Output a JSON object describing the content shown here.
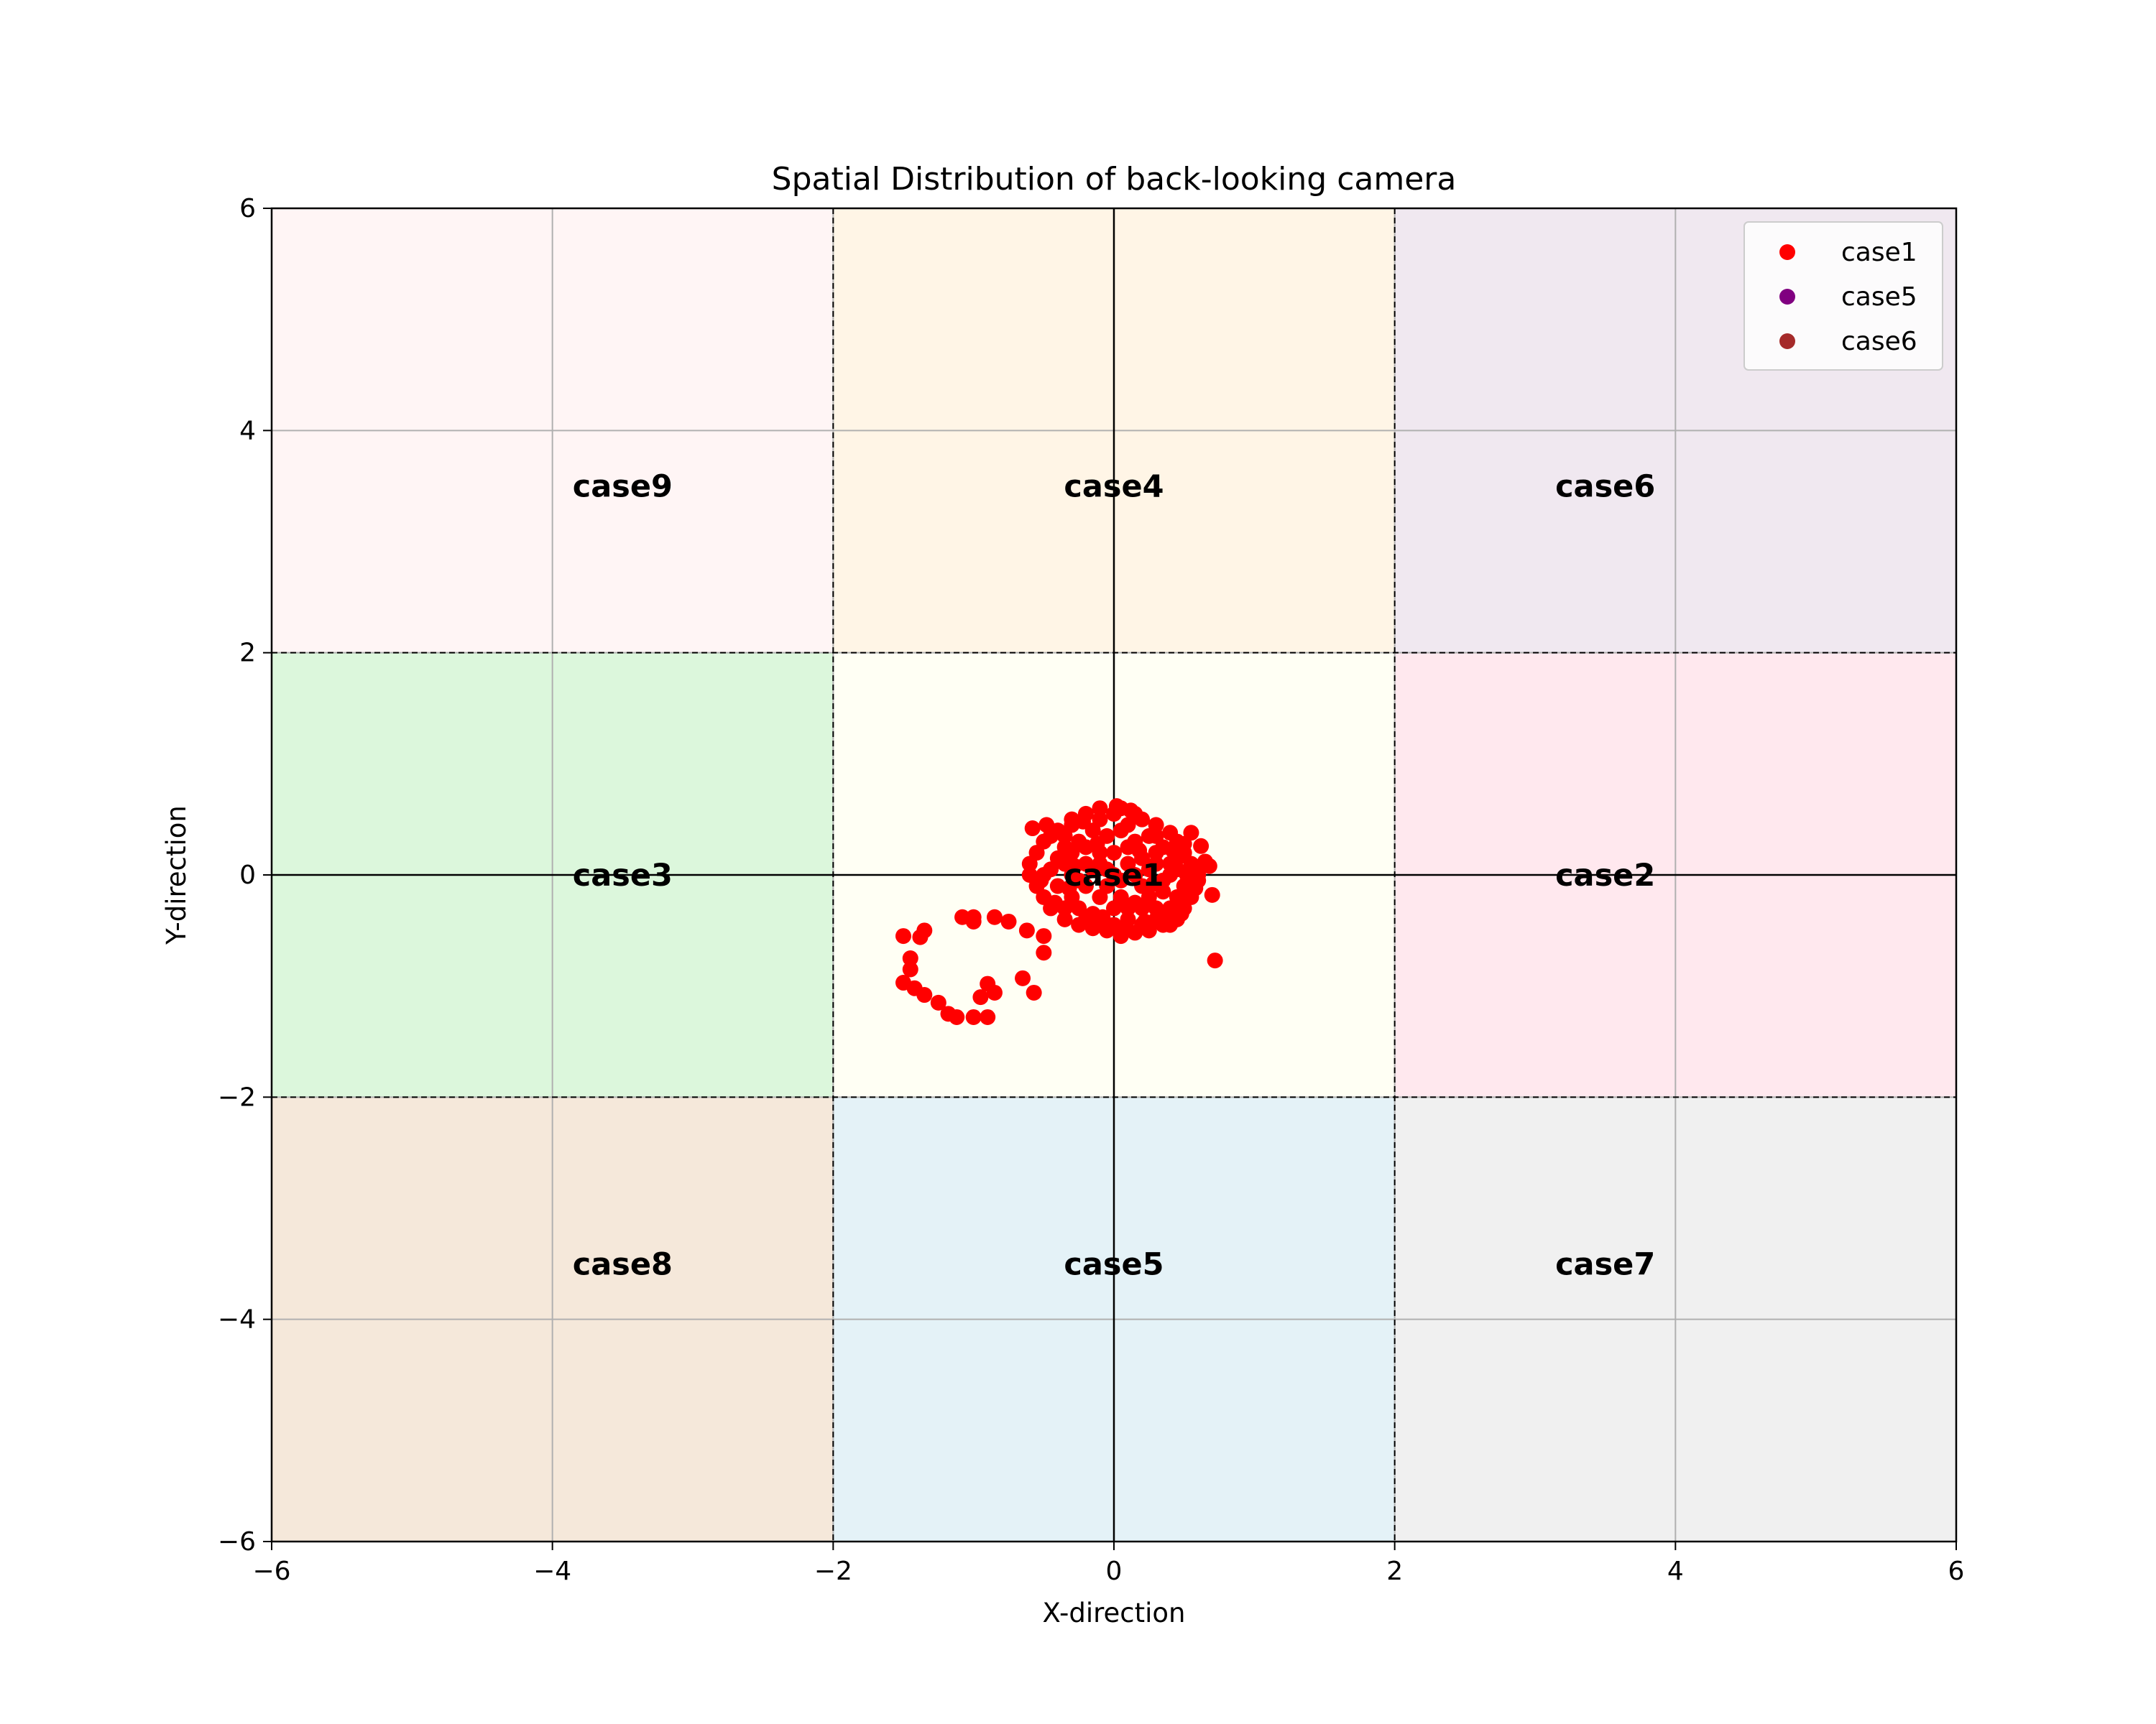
{
  "chart_data": {
    "type": "scatter",
    "title": "Spatial Distribution of back-looking camera",
    "xlabel": "X-direction",
    "ylabel": "Y-direction",
    "xlim": [
      -6,
      6
    ],
    "ylim": [
      -6,
      6
    ],
    "xticks": [
      -6,
      -4,
      -2,
      0,
      2,
      4,
      6
    ],
    "yticks": [
      -6,
      -4,
      -2,
      0,
      2,
      4,
      6
    ],
    "xtick_labels": [
      "−6",
      "−4",
      "−2",
      "0",
      "2",
      "4",
      "6"
    ],
    "ytick_labels": [
      "−6",
      "−4",
      "−2",
      "0",
      "2",
      "4",
      "6"
    ],
    "grid": true,
    "legend_position": "top-right",
    "regions": [
      {
        "label": "case9",
        "x": [
          -6,
          -2
        ],
        "y": [
          2,
          6
        ],
        "color": "#fff5f5"
      },
      {
        "label": "case4",
        "x": [
          -2,
          2
        ],
        "y": [
          2,
          6
        ],
        "color": "#fff5e6"
      },
      {
        "label": "case6",
        "x": [
          2,
          6
        ],
        "y": [
          2,
          6
        ],
        "color": "#f0e8f0"
      },
      {
        "label": "case3",
        "x": [
          -6,
          -2
        ],
        "y": [
          -2,
          2
        ],
        "color": "#dcf7dc"
      },
      {
        "label": "case1",
        "x": [
          -2,
          2
        ],
        "y": [
          -2,
          2
        ],
        "color": "#fffff4"
      },
      {
        "label": "case2",
        "x": [
          2,
          6
        ],
        "y": [
          -2,
          2
        ],
        "color": "#ffe8ee"
      },
      {
        "label": "case8",
        "x": [
          -6,
          -2
        ],
        "y": [
          -6,
          -2
        ],
        "color": "#f5e8da"
      },
      {
        "label": "case5",
        "x": [
          -2,
          2
        ],
        "y": [
          -6,
          -2
        ],
        "color": "#e4f2f7"
      },
      {
        "label": "case7",
        "x": [
          2,
          6
        ],
        "y": [
          -6,
          -2
        ],
        "color": "#f0f0f0"
      }
    ],
    "region_label_positions": {
      "case9": [
        -3.5,
        3.5
      ],
      "case4": [
        0,
        3.5
      ],
      "case6": [
        3.5,
        3.5
      ],
      "case3": [
        -3.5,
        0
      ],
      "case1": [
        0,
        0
      ],
      "case2": [
        3.5,
        0
      ],
      "case8": [
        -3.5,
        -3.5
      ],
      "case5": [
        0,
        -3.5
      ],
      "case7": [
        3.5,
        -3.5
      ]
    },
    "series": [
      {
        "name": "case1",
        "color": "#ff0000",
        "points": [
          [
            -1.5,
            -0.55
          ],
          [
            -1.45,
            -0.75
          ],
          [
            -1.45,
            -0.85
          ],
          [
            -1.5,
            -0.97
          ],
          [
            -1.42,
            -1.02
          ],
          [
            -1.35,
            -1.08
          ],
          [
            -1.25,
            -1.15
          ],
          [
            -1.18,
            -1.25
          ],
          [
            -1.12,
            -1.28
          ],
          [
            -1.0,
            -1.28
          ],
          [
            -0.9,
            -1.28
          ],
          [
            -0.95,
            -1.1
          ],
          [
            -0.9,
            -0.98
          ],
          [
            -0.85,
            -1.06
          ],
          [
            -0.65,
            -0.93
          ],
          [
            -0.57,
            -1.06
          ],
          [
            -0.5,
            -0.55
          ],
          [
            -0.5,
            -0.7
          ],
          [
            -0.62,
            -0.5
          ],
          [
            -0.75,
            -0.42
          ],
          [
            -0.85,
            -0.38
          ],
          [
            -1.0,
            -0.38
          ],
          [
            -1.0,
            -0.42
          ],
          [
            -1.08,
            -0.38
          ],
          [
            -1.35,
            -0.5
          ],
          [
            -1.38,
            -0.56
          ],
          [
            0.72,
            -0.77
          ],
          [
            0.7,
            -0.18
          ],
          [
            0.68,
            0.08
          ],
          [
            0.62,
            0.26
          ],
          [
            0.55,
            0.38
          ],
          [
            -0.3,
            0.0
          ],
          [
            -0.2,
            0.1
          ],
          [
            -0.1,
            0.2
          ],
          [
            0.0,
            0.0
          ],
          [
            0.1,
            0.1
          ],
          [
            0.2,
            -0.1
          ],
          [
            0.3,
            0.1
          ],
          [
            0.4,
            0.0
          ],
          [
            0.5,
            -0.1
          ],
          [
            0.6,
            0.0
          ],
          [
            0.0,
            -0.3
          ],
          [
            0.1,
            -0.4
          ],
          [
            0.2,
            -0.3
          ],
          [
            0.3,
            -0.4
          ],
          [
            0.4,
            -0.3
          ],
          [
            -0.1,
            -0.2
          ],
          [
            -0.2,
            -0.1
          ],
          [
            -0.3,
            -0.2
          ],
          [
            -0.4,
            -0.1
          ],
          [
            -0.5,
            0.0
          ],
          [
            -0.6,
            0.0
          ],
          [
            -0.55,
            0.2
          ],
          [
            -0.5,
            0.3
          ],
          [
            -0.4,
            0.4
          ],
          [
            -0.3,
            0.5
          ],
          [
            -0.2,
            0.55
          ],
          [
            -0.1,
            0.6
          ],
          [
            0.0,
            0.55
          ],
          [
            0.05,
            0.6
          ],
          [
            0.15,
            0.55
          ],
          [
            0.2,
            0.5
          ],
          [
            0.3,
            0.45
          ],
          [
            0.4,
            0.38
          ],
          [
            0.45,
            0.3
          ],
          [
            0.5,
            0.2
          ],
          [
            0.55,
            0.1
          ],
          [
            0.6,
            -0.05
          ],
          [
            0.55,
            -0.2
          ],
          [
            0.5,
            -0.3
          ],
          [
            0.45,
            -0.4
          ],
          [
            0.35,
            -0.45
          ],
          [
            0.25,
            -0.5
          ],
          [
            0.15,
            -0.52
          ],
          [
            0.05,
            -0.55
          ],
          [
            -0.05,
            -0.5
          ],
          [
            -0.15,
            -0.48
          ],
          [
            -0.25,
            -0.45
          ],
          [
            -0.35,
            -0.4
          ],
          [
            -0.45,
            -0.3
          ],
          [
            -0.5,
            -0.2
          ],
          [
            -0.55,
            -0.1
          ],
          [
            -0.6,
            0.1
          ],
          [
            -0.58,
            0.42
          ],
          [
            -0.48,
            0.45
          ],
          [
            -0.35,
            0.35
          ],
          [
            -0.25,
            0.3
          ],
          [
            -0.15,
            0.4
          ],
          [
            -0.05,
            0.35
          ],
          [
            0.05,
            0.4
          ],
          [
            0.15,
            0.3
          ],
          [
            0.25,
            0.35
          ],
          [
            0.35,
            0.25
          ],
          [
            0.45,
            0.15
          ],
          [
            -0.3,
            0.2
          ],
          [
            -0.2,
            0.25
          ],
          [
            -0.1,
            0.1
          ],
          [
            0.0,
            0.2
          ],
          [
            0.1,
            0.25
          ],
          [
            0.2,
            0.15
          ],
          [
            0.3,
            0.2
          ],
          [
            0.4,
            0.1
          ],
          [
            -0.4,
            0.15
          ],
          [
            -0.35,
            -0.3
          ],
          [
            -0.25,
            -0.3
          ],
          [
            -0.15,
            -0.35
          ],
          [
            -0.05,
            -0.1
          ],
          [
            0.05,
            -0.2
          ],
          [
            0.15,
            -0.25
          ],
          [
            0.25,
            -0.2
          ],
          [
            0.35,
            -0.15
          ],
          [
            0.45,
            -0.2
          ],
          [
            -0.45,
            0.05
          ],
          [
            -0.35,
            0.1
          ],
          [
            -0.25,
            -0.05
          ],
          [
            -0.15,
            0.05
          ],
          [
            -0.05,
            0.05
          ],
          [
            0.05,
            -0.05
          ],
          [
            0.15,
            0.0
          ],
          [
            0.25,
            0.05
          ],
          [
            0.35,
            -0.05
          ],
          [
            0.45,
            0.05
          ],
          [
            -0.2,
            -0.4
          ],
          [
            -0.1,
            -0.45
          ],
          [
            0.0,
            -0.45
          ],
          [
            0.1,
            -0.3
          ],
          [
            0.2,
            -0.45
          ],
          [
            0.3,
            -0.3
          ],
          [
            0.4,
            -0.45
          ],
          [
            -0.3,
            0.45
          ],
          [
            -0.1,
            0.5
          ],
          [
            0.1,
            0.45
          ],
          [
            0.3,
            0.35
          ],
          [
            0.5,
            0.28
          ],
          [
            -0.45,
            0.35
          ],
          [
            -0.35,
            0.25
          ],
          [
            -0.28,
            0.08
          ],
          [
            0.62,
            0.08
          ],
          [
            0.65,
            0.12
          ],
          [
            0.58,
            -0.12
          ],
          [
            -0.42,
            -0.25
          ],
          [
            0.02,
            0.62
          ],
          [
            0.12,
            0.58
          ],
          [
            -0.22,
            0.48
          ],
          [
            0.35,
            -0.35
          ],
          [
            0.22,
            -0.42
          ],
          [
            0.08,
            -0.5
          ],
          [
            -0.08,
            -0.38
          ],
          [
            -0.32,
            -0.12
          ],
          [
            0.48,
            -0.35
          ],
          [
            -0.52,
            -0.05
          ],
          [
            0.52,
            0.0
          ],
          [
            0.42,
            0.22
          ],
          [
            -0.12,
            0.28
          ],
          [
            0.18,
            0.22
          ],
          [
            0.28,
            -0.08
          ]
        ]
      },
      {
        "name": "case5",
        "color": "#800080",
        "points": []
      },
      {
        "name": "case6",
        "color": "#a52a2a",
        "points": []
      }
    ]
  }
}
